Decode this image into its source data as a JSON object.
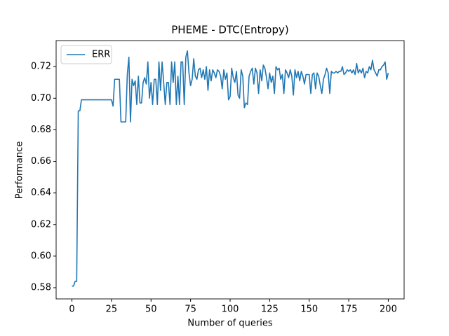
{
  "chart_data": {
    "type": "line",
    "title": "PHEME - DTC(Entropy)",
    "xlabel": "Number of queries",
    "ylabel": "Performance",
    "x": [
      0,
      1,
      2,
      3,
      4,
      5,
      6,
      7,
      8,
      9,
      10,
      11,
      12,
      13,
      14,
      15,
      16,
      17,
      18,
      19,
      20,
      21,
      22,
      23,
      24,
      25,
      26,
      27,
      28,
      29,
      30,
      31,
      32,
      33,
      34,
      35,
      36,
      37,
      38,
      39,
      40,
      41,
      42,
      43,
      44,
      45,
      46,
      47,
      48,
      49,
      50,
      51,
      52,
      53,
      54,
      55,
      56,
      57,
      58,
      59,
      60,
      61,
      62,
      63,
      64,
      65,
      66,
      67,
      68,
      69,
      70,
      71,
      72,
      73,
      74,
      75,
      76,
      77,
      78,
      79,
      80,
      81,
      82,
      83,
      84,
      85,
      86,
      87,
      88,
      89,
      90,
      91,
      92,
      93,
      94,
      95,
      96,
      97,
      98,
      99,
      100,
      101,
      102,
      103,
      104,
      105,
      106,
      107,
      108,
      109,
      110,
      111,
      112,
      113,
      114,
      115,
      116,
      117,
      118,
      119,
      120,
      121,
      122,
      123,
      124,
      125,
      126,
      127,
      128,
      129,
      130,
      131,
      132,
      133,
      134,
      135,
      136,
      137,
      138,
      139,
      140,
      141,
      142,
      143,
      144,
      145,
      146,
      147,
      148,
      149,
      150,
      151,
      152,
      153,
      154,
      155,
      156,
      157,
      158,
      159,
      160,
      161,
      162,
      163,
      164,
      165,
      166,
      167,
      168,
      169,
      170,
      171,
      172,
      173,
      174,
      175,
      176,
      177,
      178,
      179,
      180,
      181,
      182,
      183,
      184,
      185,
      186,
      187,
      188,
      189,
      190,
      191,
      192,
      193,
      194,
      195,
      196,
      197,
      198,
      199,
      200
    ],
    "series": [
      {
        "name": "ERR",
        "color": "#1f77b4",
        "values": [
          0.581,
          0.581,
          0.584,
          0.584,
          0.692,
          0.692,
          0.699,
          0.699,
          0.699,
          0.699,
          0.699,
          0.699,
          0.699,
          0.699,
          0.699,
          0.699,
          0.699,
          0.699,
          0.699,
          0.699,
          0.699,
          0.699,
          0.699,
          0.699,
          0.699,
          0.699,
          0.695,
          0.712,
          0.712,
          0.712,
          0.712,
          0.685,
          0.685,
          0.685,
          0.685,
          0.715,
          0.726,
          0.685,
          0.712,
          0.708,
          0.711,
          0.696,
          0.714,
          0.697,
          0.697,
          0.71,
          0.713,
          0.709,
          0.723,
          0.7,
          0.71,
          0.696,
          0.712,
          0.712,
          0.696,
          0.723,
          0.705,
          0.723,
          0.71,
          0.696,
          0.71,
          0.71,
          0.696,
          0.723,
          0.71,
          0.723,
          0.696,
          0.714,
          0.696,
          0.723,
          0.723,
          0.696,
          0.726,
          0.73,
          0.716,
          0.708,
          0.712,
          0.725,
          0.714,
          0.712,
          0.718,
          0.719,
          0.713,
          0.718,
          0.712,
          0.72,
          0.705,
          0.718,
          0.711,
          0.718,
          0.716,
          0.713,
          0.718,
          0.717,
          0.714,
          0.706,
          0.718,
          0.712,
          0.716,
          0.699,
          0.701,
          0.719,
          0.713,
          0.71,
          0.717,
          0.702,
          0.7,
          0.718,
          0.714,
          0.694,
          0.697,
          0.696,
          0.714,
          0.717,
          0.719,
          0.709,
          0.719,
          0.716,
          0.703,
          0.718,
          0.711,
          0.721,
          0.719,
          0.713,
          0.706,
          0.716,
          0.71,
          0.714,
          0.703,
          0.72,
          0.718,
          0.719,
          0.712,
          0.715,
          0.703,
          0.718,
          0.716,
          0.713,
          0.718,
          0.714,
          0.702,
          0.718,
          0.713,
          0.717,
          0.711,
          0.717,
          0.714,
          0.709,
          0.715,
          0.715,
          0.715,
          0.703,
          0.715,
          0.716,
          0.706,
          0.716,
          0.714,
          0.708,
          0.703,
          0.712,
          0.715,
          0.719,
          0.716,
          0.703,
          0.717,
          0.716,
          0.716,
          0.717,
          0.716,
          0.717,
          0.717,
          0.72,
          0.715,
          0.716,
          0.718,
          0.717,
          0.718,
          0.716,
          0.718,
          0.715,
          0.722,
          0.716,
          0.718,
          0.716,
          0.719,
          0.713,
          0.717,
          0.716,
          0.72,
          0.718,
          0.724,
          0.718,
          0.716,
          0.714,
          0.718,
          0.718,
          0.72,
          0.721,
          0.723,
          0.712,
          0.716
        ]
      }
    ],
    "xlim": [
      -10,
      210
    ],
    "xticks": [
      0,
      25,
      50,
      75,
      100,
      125,
      150,
      175,
      200
    ],
    "ylim": [
      0.5729,
      0.7365
    ],
    "yticks": [
      0.58,
      0.62,
      0.64,
      0.66,
      0.68,
      {
        "value": 0.6,
        "label": "0.60"
      },
      {
        "value": 0.7,
        "label": "0.70"
      },
      0.72
    ],
    "legend": "upper left"
  }
}
